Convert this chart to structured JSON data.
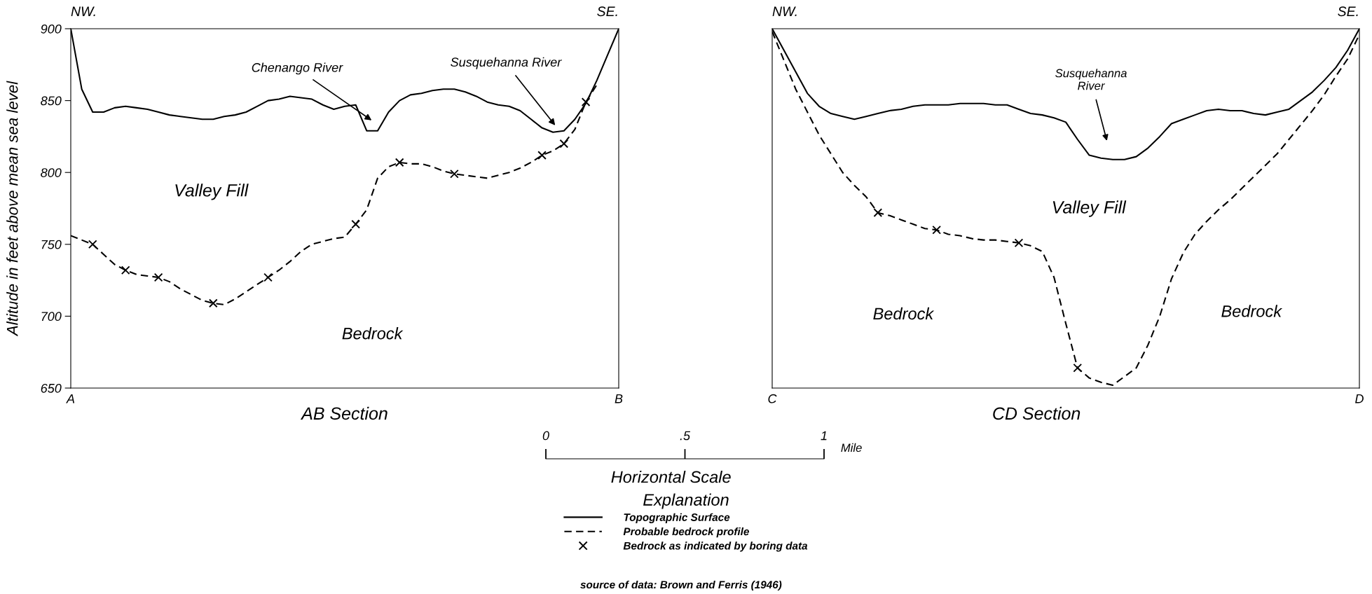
{
  "chart_data": [
    {
      "type": "line",
      "title": "AB Section",
      "ylabel": "Altitude in feet above mean sea level",
      "legend_title": "Explanation",
      "legend": "bottom",
      "grid": false,
      "categories": [
        "A",
        null,
        null,
        null,
        null,
        null,
        null,
        null,
        null,
        null,
        null,
        null,
        null,
        null,
        null,
        null,
        null,
        null,
        null,
        null,
        null,
        null,
        null,
        null,
        null,
        null,
        null,
        null,
        null,
        null,
        null,
        null,
        null,
        null,
        null,
        null,
        null,
        null,
        null,
        null,
        null,
        null,
        null,
        null,
        null,
        null,
        null,
        null,
        null,
        null,
        "B"
      ],
      "x2lim": [
        0,
        1
      ],
      "x2ticks": [
        0,
        {
          "value": 0.5,
          "label": ".5"
        },
        1
      ],
      "x2label": "Horizontal Scale",
      "ylim": [
        650,
        900
      ],
      "yticks": [
        650,
        700,
        750,
        800,
        850,
        900
      ],
      "series": [
        {
          "name": "Topographic Surface",
          "line_style": "solid",
          "color": "#000000",
          "values": [
            900,
            858,
            842,
            842,
            845,
            846,
            845,
            844,
            842,
            840,
            839,
            838,
            837,
            837,
            839,
            840,
            842,
            846,
            850,
            851,
            853,
            852,
            851,
            847,
            844,
            846,
            847,
            829,
            829,
            842,
            850,
            854,
            855,
            857,
            858,
            858,
            856,
            853,
            849,
            847,
            846,
            843,
            837,
            831,
            828,
            829,
            837,
            848,
            864,
            882,
            900
          ]
        },
        {
          "name": "Probable bedrock profile",
          "line_style": "dashed",
          "color": "#000000",
          "values": [
            756,
            753,
            750,
            743,
            736,
            732,
            729,
            728,
            727,
            724,
            719,
            715,
            711,
            709,
            708,
            712,
            717,
            722,
            727,
            732,
            738,
            745,
            750,
            752,
            754,
            755,
            764,
            774,
            796,
            804,
            807,
            806,
            806,
            804,
            801,
            799,
            798,
            797,
            796,
            798,
            800,
            803,
            807,
            812,
            815,
            820,
            830,
            849,
            861,
            null,
            null
          ]
        },
        {
          "name": "Bedrock as indicated by boring data",
          "type": "scatter",
          "marker": "cross",
          "color": "#000000",
          "values": [
            null,
            null,
            750,
            null,
            null,
            732,
            null,
            null,
            727,
            null,
            null,
            null,
            null,
            709,
            null,
            null,
            null,
            null,
            727,
            null,
            null,
            null,
            null,
            null,
            null,
            null,
            764,
            null,
            null,
            null,
            807,
            null,
            null,
            null,
            null,
            799,
            null,
            null,
            null,
            null,
            null,
            null,
            null,
            812,
            null,
            820,
            null,
            849,
            null,
            null,
            null
          ]
        }
      ],
      "annotations": [
        "Chenango River",
        "Susquehanna River",
        "Valley Fill",
        "Bedrock",
        "NW.",
        "SE.",
        "Mile",
        "source of data: Brown and Ferris (1946)"
      ]
    },
    {
      "type": "line",
      "title": "CD Section",
      "grid": false,
      "tick_labels": "x",
      "categories": [
        "C",
        null,
        null,
        null,
        null,
        null,
        null,
        null,
        null,
        null,
        null,
        null,
        null,
        null,
        null,
        null,
        null,
        null,
        null,
        null,
        null,
        null,
        null,
        null,
        null,
        null,
        null,
        null,
        null,
        null,
        null,
        null,
        null,
        null,
        null,
        null,
        null,
        null,
        null,
        null,
        null,
        null,
        null,
        null,
        null,
        null,
        null,
        null,
        null,
        null,
        "D"
      ],
      "ylim": [
        650,
        900
      ],
      "yticks": [
        650,
        700,
        750,
        800,
        850,
        900
      ],
      "series": [
        {
          "line_style": "solid",
          "color": "#000000",
          "values": [
            900,
            885,
            870,
            855,
            846,
            841,
            839,
            837,
            839,
            841,
            843,
            844,
            846,
            847,
            847,
            847,
            848,
            848,
            848,
            847,
            847,
            844,
            841,
            840,
            838,
            835,
            823,
            812,
            810,
            809,
            809,
            811,
            817,
            825,
            834,
            837,
            840,
            843,
            844,
            843,
            843,
            841,
            840,
            842,
            844,
            850,
            856,
            864,
            873,
            885,
            900
          ]
        },
        {
          "line_style": "dashed",
          "color": "#000000",
          "values": [
            898,
            878,
            858,
            842,
            826,
            813,
            800,
            791,
            783,
            772,
            770,
            767,
            764,
            761,
            760,
            757,
            756,
            754,
            753,
            753,
            752,
            751,
            749,
            745,
            727,
            695,
            664,
            657,
            654,
            652,
            658,
            664,
            680,
            700,
            726,
            744,
            757,
            766,
            774,
            781,
            789,
            797,
            805,
            813,
            823,
            833,
            843,
            854,
            867,
            879,
            896
          ]
        },
        {
          "type": "scatter",
          "marker": "cross",
          "color": "#000000",
          "values": [
            null,
            null,
            null,
            null,
            null,
            null,
            null,
            null,
            null,
            772,
            null,
            null,
            null,
            null,
            760,
            null,
            null,
            null,
            null,
            null,
            null,
            751,
            null,
            null,
            null,
            null,
            664,
            null,
            null,
            null,
            null,
            null,
            null,
            null,
            null,
            null,
            null,
            null,
            null,
            null,
            null,
            null,
            null,
            null,
            null,
            null,
            null,
            null,
            null,
            null,
            null
          ]
        }
      ],
      "annotations": [
        "NW.",
        "SE.",
        "Susquehanna\nRiver",
        "Valley Fill",
        "Bedrock",
        "Bedrock"
      ]
    }
  ]
}
